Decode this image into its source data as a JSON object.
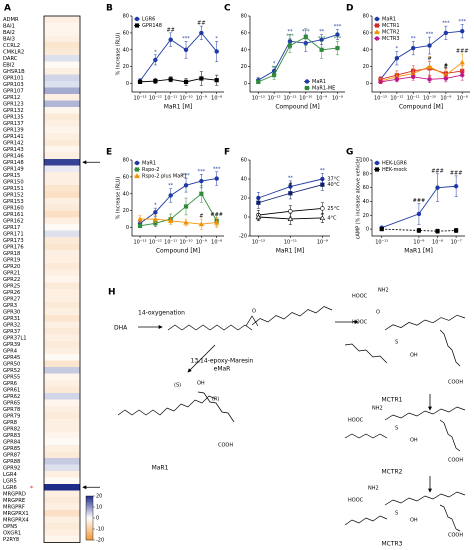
{
  "chart_data": [
    {
      "type": "heatmap",
      "panel": "A",
      "categories": [
        "ADMR",
        "BAI1",
        "BAI2",
        "BAI3",
        "CCRL2",
        "CMKLR2",
        "DARC",
        "EBI2",
        "GHSR1B",
        "GPR101",
        "GPR103",
        "GPR107",
        "GPR12",
        "GPR123",
        "GPR132",
        "GPR135",
        "GPR137",
        "GPR139",
        "GPR141",
        "GPR142",
        "GPR143",
        "GPR146",
        "GPR148",
        "GPR149",
        "GPR15",
        "GPR150",
        "GPR151",
        "GPR152",
        "GPR153",
        "GPR160",
        "GPR161",
        "GPR162",
        "GPR17",
        "GPR171",
        "GPR173",
        "GPR176",
        "GPR18",
        "GPR19",
        "GPR20",
        "GPR21",
        "GPR22",
        "GPR25",
        "GPR26",
        "GPR27",
        "GPR3",
        "GPR30",
        "GPR31",
        "GPR32",
        "GPR37",
        "GPR37L1",
        "GPR39",
        "GPR4",
        "GPR45",
        "GPR50",
        "GPR52",
        "GPR55",
        "GPR6",
        "GPR61",
        "GPR62",
        "GPR65",
        "GPR78",
        "GPR79",
        "GPR8",
        "GPR82",
        "GPR83",
        "GPR84",
        "GPR85",
        "GPR87",
        "GPR88",
        "GPR92",
        "LGR4",
        "LGR5",
        "LGR6",
        "MRGPRD",
        "MRGPRE",
        "MRGPRF",
        "MRGPRX1",
        "MRGPRX4",
        "OPN5",
        "OXGR1",
        "P2RY8"
      ],
      "values": [
        -3,
        -2,
        -2,
        -3,
        -5,
        -4,
        3,
        -1,
        -3,
        4,
        3,
        8,
        -3,
        7,
        -2,
        -4,
        -3,
        -2,
        -3,
        -4,
        -2,
        -3,
        18,
        2,
        -3,
        -3,
        -5,
        -6,
        -3,
        -4,
        -6,
        -3,
        -1,
        3,
        -4,
        -5,
        -3,
        -3,
        -4,
        -3,
        -2,
        -4,
        -3,
        -3,
        -4,
        -3,
        -5,
        -3,
        -4,
        -3,
        -4,
        -3,
        -1,
        -5,
        5,
        -2,
        -3,
        -4,
        4,
        -2,
        -3,
        -4,
        -3,
        -3,
        -2,
        -1,
        -3,
        -4,
        5,
        3,
        -3,
        -1,
        20,
        -3,
        -4,
        -3,
        -6,
        -3,
        -4,
        -3,
        -2
      ],
      "clim": [
        -20,
        20
      ],
      "cticks": [
        20,
        10,
        0,
        -10,
        -20
      ],
      "colors": {
        "positive": "#1f2d8a",
        "zero": "#ffffff",
        "negative": "#f0983c"
      },
      "highlight": [
        "GPR148",
        "LGR6"
      ],
      "star": {
        "text": "*",
        "category": "LGR6",
        "color": "#e02020"
      }
    },
    {
      "type": "line",
      "panel": "B",
      "xlabel": "MaR1 [M]",
      "ylabel": "% Increase (RLU)",
      "x": [
        1e-13,
        1e-12,
        1e-11,
        1e-10,
        1e-09,
        1e-08
      ],
      "xscale": "log",
      "xlim": [
        3e-14,
        3e-08
      ],
      "xticks": [
        {
          "value": 1e-13,
          "label": "10⁻¹³"
        },
        {
          "value": 1e-12,
          "label": "10⁻¹²"
        },
        {
          "value": 1e-11,
          "label": "10⁻¹¹"
        },
        {
          "value": 1e-10,
          "label": "10⁻¹⁰"
        },
        {
          "value": 1e-09,
          "label": "10⁻⁹"
        },
        {
          "value": 1e-08,
          "label": "10⁻⁸"
        }
      ],
      "ylim": [
        -10,
        80
      ],
      "yticks": [
        0,
        20,
        40,
        60,
        80
      ],
      "legend": "upper left",
      "series": [
        {
          "name": "LGR6",
          "color": "#1f3aa6",
          "marker": "circle",
          "values": [
            3,
            28,
            52,
            40,
            60,
            38
          ],
          "errors": [
            3,
            6,
            8,
            10,
            8,
            12
          ],
          "labels": [
            null,
            "*",
            "##",
            "***",
            "##",
            "*"
          ]
        },
        {
          "name": "GPR148",
          "color": "#000000",
          "marker": "square",
          "values": [
            2,
            3,
            5,
            2,
            6,
            4
          ],
          "errors": [
            2,
            3,
            3,
            4,
            8,
            6
          ],
          "labels": [
            null,
            null,
            null,
            null,
            null,
            null
          ]
        }
      ]
    },
    {
      "type": "line",
      "panel": "C",
      "xlabel": "Compound [M]",
      "x": [
        1e-13,
        1e-12,
        1e-11,
        1e-10,
        1e-09,
        1e-08
      ],
      "xscale": "log",
      "xlim": [
        3e-14,
        3e-08
      ],
      "xticks": [
        {
          "value": 1e-13,
          "label": "10⁻¹³"
        },
        {
          "value": 1e-12,
          "label": "10⁻¹²"
        },
        {
          "value": 1e-11,
          "label": "10⁻¹¹"
        },
        {
          "value": 1e-10,
          "label": "10⁻¹⁰"
        },
        {
          "value": 1e-09,
          "label": "10⁻⁹"
        },
        {
          "value": 1e-08,
          "label": "10⁻⁸"
        }
      ],
      "ylim": [
        -10,
        80
      ],
      "yticks": [
        0,
        20,
        40,
        60,
        80
      ],
      "legend": "lower right",
      "series": [
        {
          "name": "MaR1",
          "color": "#1f3aa6",
          "marker": "circle",
          "values": [
            4,
            15,
            50,
            48,
            52,
            58
          ],
          "errors": [
            3,
            5,
            8,
            10,
            6,
            6
          ],
          "labels": [
            null,
            "*",
            "**",
            "***",
            "**",
            "***"
          ]
        },
        {
          "name": "MaR1-ME",
          "color": "#2e8b3a",
          "marker": "square",
          "values": [
            2,
            10,
            45,
            55,
            40,
            42
          ],
          "errors": [
            2,
            5,
            8,
            10,
            10,
            8
          ],
          "labels": [
            null,
            "**",
            "***",
            null,
            "***",
            "***"
          ]
        }
      ]
    },
    {
      "type": "line",
      "panel": "D",
      "xlabel": "Compound [M]",
      "x": [
        1e-13,
        1e-12,
        1e-11,
        1e-10,
        1e-09,
        1e-08
      ],
      "xscale": "log",
      "xlim": [
        3e-14,
        3e-08
      ],
      "xticks": [
        {
          "value": 1e-13,
          "label": "10⁻¹³"
        },
        {
          "value": 1e-12,
          "label": "10⁻¹²"
        },
        {
          "value": 1e-11,
          "label": "10⁻¹¹"
        },
        {
          "value": 1e-10,
          "label": "10⁻¹⁰"
        },
        {
          "value": 1e-09,
          "label": "10⁻⁹"
        },
        {
          "value": 1e-08,
          "label": "10⁻⁸"
        }
      ],
      "ylim": [
        -10,
        80
      ],
      "yticks": [
        0,
        20,
        40,
        60,
        80
      ],
      "legend": "upper left",
      "series": [
        {
          "name": "MaR1",
          "color": "#1f3aa6",
          "marker": "circle",
          "values": [
            5,
            30,
            42,
            45,
            60,
            62
          ],
          "errors": [
            3,
            8,
            8,
            10,
            8,
            8
          ],
          "labels": [
            null,
            "*",
            "**",
            "***",
            "***",
            "***"
          ]
        },
        {
          "name": "MCTR1",
          "color": "#d62728",
          "marker": "square",
          "values": [
            5,
            10,
            15,
            18,
            12,
            15
          ],
          "errors": [
            3,
            5,
            6,
            8,
            6,
            6
          ],
          "labels": [
            null,
            null,
            null,
            "#",
            "#",
            null
          ]
        },
        {
          "name": "MCTR2",
          "color": "#f39200",
          "marker": "triangle",
          "values": [
            3,
            8,
            12,
            20,
            10,
            25
          ],
          "errors": [
            3,
            4,
            6,
            12,
            6,
            10
          ],
          "labels": [
            null,
            null,
            null,
            null,
            "#",
            "###"
          ]
        },
        {
          "name": "MCTR3",
          "color": "#c2168f",
          "marker": "circle",
          "values": [
            2,
            5,
            8,
            5,
            6,
            10
          ],
          "errors": [
            2,
            3,
            4,
            4,
            4,
            6
          ],
          "labels": [
            null,
            null,
            null,
            null,
            null,
            null
          ]
        }
      ]
    },
    {
      "type": "line",
      "panel": "E",
      "xlabel": "Compound [M]",
      "ylabel": "% Increase (RLU)",
      "x": [
        1e-13,
        1e-12,
        1e-11,
        1e-10,
        1e-09,
        1e-08
      ],
      "xscale": "log",
      "xlim": [
        3e-14,
        3e-08
      ],
      "xticks": [
        {
          "value": 1e-13,
          "label": "10⁻¹³"
        },
        {
          "value": 1e-12,
          "label": "10⁻¹²"
        },
        {
          "value": 1e-11,
          "label": "10⁻¹¹"
        },
        {
          "value": 1e-10,
          "label": "10⁻¹⁰"
        },
        {
          "value": 1e-09,
          "label": "10⁻⁹"
        },
        {
          "value": 1e-08,
          "label": "10⁻⁸"
        }
      ],
      "ylim": [
        -10,
        80
      ],
      "yticks": [
        0,
        20,
        40,
        60,
        80
      ],
      "legend": "upper left",
      "series": [
        {
          "name": "MaR1",
          "color": "#1f3aa6",
          "marker": "circle",
          "values": [
            5,
            18,
            38,
            50,
            55,
            58
          ],
          "errors": [
            3,
            5,
            8,
            8,
            8,
            8
          ],
          "labels": [
            null,
            "*",
            "**",
            "***",
            "***",
            "***"
          ]
        },
        {
          "name": "Rspo-2",
          "color": "#2e8b3a",
          "marker": "square",
          "values": [
            2,
            5,
            10,
            25,
            40,
            8
          ],
          "errors": [
            2,
            4,
            6,
            10,
            10,
            6
          ],
          "labels": [
            null,
            null,
            null,
            null,
            null,
            null
          ]
        },
        {
          "name": "Rspo-2 plus MaR1",
          "color": "#f39200",
          "marker": "triangle",
          "values": [
            10,
            10,
            8,
            6,
            4,
            6
          ],
          "errors": [
            4,
            4,
            4,
            4,
            6,
            6
          ],
          "labels": [
            null,
            null,
            null,
            null,
            "#",
            "###"
          ]
        }
      ]
    },
    {
      "type": "line",
      "panel": "F",
      "xlabel": "MaR1 [M]",
      "x": [
        1e-13,
        1e-11,
        1e-09
      ],
      "xscale": "log",
      "xlim": [
        3e-14,
        3e-09
      ],
      "xticks": [
        {
          "value": 1e-13,
          "label": "10⁻¹³"
        },
        {
          "value": 1e-11,
          "label": "10⁻¹¹"
        },
        {
          "value": 1e-09,
          "label": "10⁻⁹"
        }
      ],
      "ylim": [
        -20,
        60
      ],
      "yticks": [
        -20,
        0,
        20,
        40,
        60
      ],
      "legend": "end",
      "series": [
        {
          "name": "37°C",
          "color": "#1f3aa6",
          "marker": "circle",
          "values": [
            20,
            32,
            40
          ],
          "errors": [
            6,
            6,
            6
          ],
          "labels": [
            null,
            "**",
            "**"
          ]
        },
        {
          "name": "40°C",
          "color": "#0d1f6b",
          "marker": "square",
          "values": [
            15,
            25,
            34
          ],
          "errors": [
            6,
            6,
            6
          ],
          "labels": [
            null,
            "#",
            null
          ]
        },
        {
          "name": "25°C",
          "color": "#000000",
          "marker": "circle",
          "marker_fill": "#ffffff",
          "values": [
            2,
            6,
            9
          ],
          "errors": [
            5,
            6,
            6
          ],
          "labels": [
            null,
            null,
            null
          ]
        },
        {
          "name": "4°C",
          "color": "#000000",
          "marker": "triangle",
          "marker_fill": "#ffffff",
          "values": [
            0,
            -2,
            -1
          ],
          "errors": [
            4,
            6,
            5
          ],
          "labels": [
            null,
            null,
            null
          ]
        }
      ]
    },
    {
      "type": "line",
      "panel": "G",
      "xlabel": "MaR1 [M]",
      "ylabel": "cAMP (% increase above vehicle)",
      "x": [
        1e-11,
        1e-09,
        1e-08,
        1e-07
      ],
      "xscale": "log",
      "xlim": [
        3e-12,
        3e-07
      ],
      "xticks": [
        {
          "value": 1e-11,
          "label": "10⁻¹¹"
        },
        {
          "value": 1e-09,
          "label": "10⁻⁹"
        },
        {
          "value": 1e-08,
          "label": "10⁻⁸"
        },
        {
          "value": 1e-07,
          "label": "10⁻⁷"
        }
      ],
      "ylim": [
        -10,
        100
      ],
      "yticks": [
        0,
        20,
        40,
        60,
        80,
        100
      ],
      "legend": "upper left",
      "series": [
        {
          "name": "HEK-LGR6",
          "color": "#1f3aa6",
          "marker": "circle",
          "values": [
            2,
            22,
            60,
            62
          ],
          "errors": [
            2,
            15,
            20,
            15
          ],
          "labels": [
            null,
            "###",
            "###",
            "###"
          ]
        },
        {
          "name": "HEK-mock",
          "color": "#000000",
          "marker": "square",
          "dash": true,
          "values": [
            0,
            -2,
            -3,
            -2
          ],
          "errors": [
            2,
            3,
            3,
            3
          ],
          "labels": [
            null,
            null,
            null,
            null
          ]
        }
      ]
    }
  ],
  "scheme": {
    "panel": "H",
    "step": "14-oxygenation",
    "substrate": "DHA",
    "intermediate": [
      "13,14-epoxy-Maresin",
      "eMaR"
    ],
    "products": [
      "MaR1",
      "MCTR1",
      "MCTR2",
      "MCTR3"
    ],
    "atoms": [
      "(S)",
      "OH",
      "(R)",
      "COOH",
      "HOOC",
      "NH2",
      "O",
      "HOOC",
      "S",
      "OH",
      "COOH",
      "NH2",
      "HOOC",
      "S",
      "OH",
      "COOH",
      "NH2",
      "HOOC",
      "S",
      "OH",
      "COOH",
      "O"
    ]
  }
}
